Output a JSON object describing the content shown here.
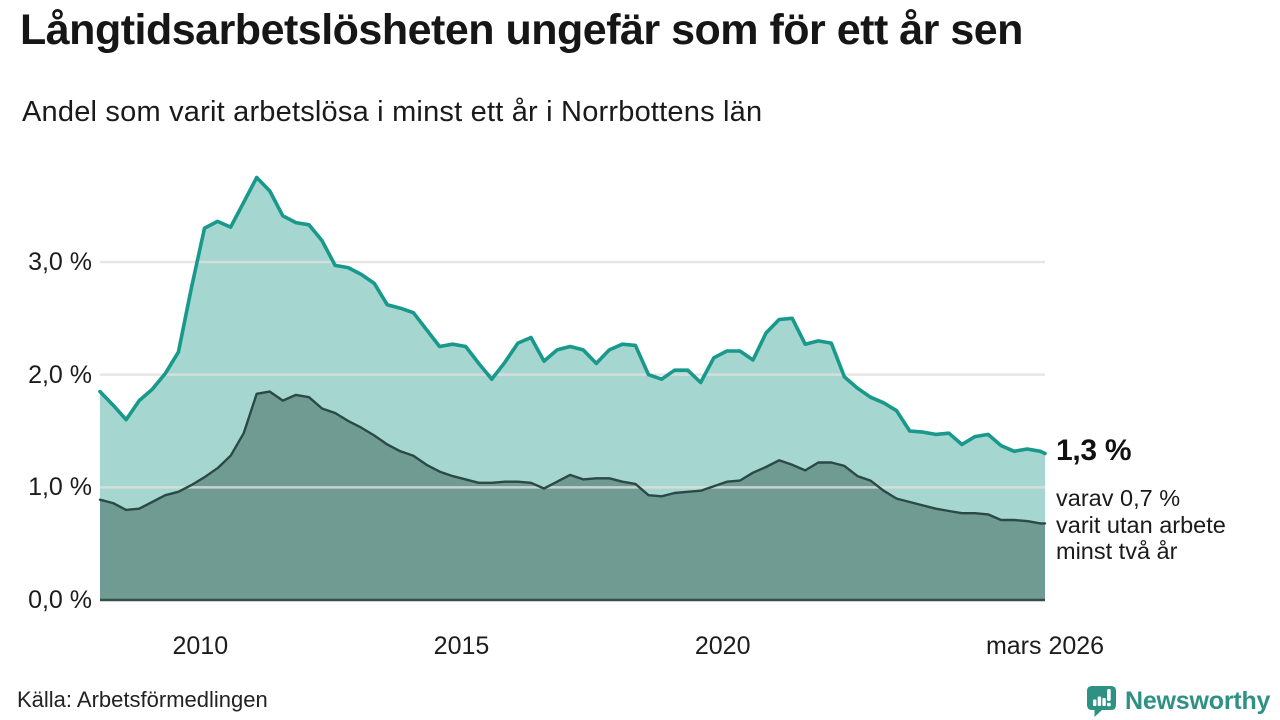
{
  "header": {
    "title": "Långtidsarbetslösheten ungefär som för ett år sen",
    "subtitle": "Andel som varit arbetslösa i minst ett år i Norrbottens län"
  },
  "annotation": {
    "value_label": "1,3 %",
    "detail_lines": [
      "varav 0,7 %",
      "varit utan arbete",
      "minst två år"
    ]
  },
  "footer": {
    "source": "Källa: Arbetsförmedlingen",
    "brand": "Newsworthy"
  },
  "colors": {
    "line_total": "#18998b",
    "fill_total": "#a5d6cf",
    "line_two_years": "#2b4a45",
    "fill_two_years": "#6f9b93",
    "gridline": "#e0e0e0",
    "baseline": "#32504a",
    "brand_teal": "#2f9184",
    "text": "#1a1a1a"
  },
  "chart_data": {
    "type": "area",
    "title": "Långtidsarbetslösheten ungefär som för ett år sen",
    "subtitle": "Andel som varit arbetslösa i minst ett år i Norrbottens län",
    "unit": "%",
    "grid": "horizontal",
    "legend_position": "none",
    "x_range": [
      2008.08,
      2026.17
    ],
    "y_range": [
      0,
      3.9
    ],
    "y_gridlines": [
      1,
      2,
      3
    ],
    "y_ticks": [
      {
        "label": "0,0 %",
        "v": 0
      },
      {
        "label": "1,0 %",
        "v": 1
      },
      {
        "label": "2,0 %",
        "v": 2
      },
      {
        "label": "3,0 %",
        "v": 3
      }
    ],
    "x_ticks": [
      {
        "label": "2010",
        "t": 2010.0
      },
      {
        "label": "2015",
        "t": 2015.0
      },
      {
        "label": "2020",
        "t": 2020.0
      },
      {
        "label": "mars 2026",
        "t": 2026.17
      }
    ],
    "x": [
      2008.08,
      2008.33,
      2008.58,
      2008.83,
      2009.08,
      2009.33,
      2009.58,
      2009.83,
      2010.08,
      2010.33,
      2010.58,
      2010.83,
      2011.08,
      2011.33,
      2011.58,
      2011.83,
      2012.08,
      2012.33,
      2012.58,
      2012.83,
      2013.08,
      2013.33,
      2013.58,
      2013.83,
      2014.08,
      2014.33,
      2014.58,
      2014.83,
      2015.08,
      2015.33,
      2015.58,
      2015.83,
      2016.08,
      2016.33,
      2016.58,
      2016.83,
      2017.08,
      2017.33,
      2017.58,
      2017.83,
      2018.08,
      2018.33,
      2018.58,
      2018.83,
      2019.08,
      2019.33,
      2019.58,
      2019.83,
      2020.08,
      2020.33,
      2020.58,
      2020.83,
      2021.08,
      2021.33,
      2021.58,
      2021.83,
      2022.08,
      2022.33,
      2022.58,
      2022.83,
      2023.08,
      2023.33,
      2023.58,
      2023.83,
      2024.08,
      2024.33,
      2024.58,
      2024.83,
      2025.08,
      2025.33,
      2025.58,
      2025.83,
      2026.08,
      2026.17
    ],
    "series": [
      {
        "name": "Arbetslösa minst ett år",
        "end_value_label": "1,3 %",
        "values": [
          1.85,
          1.73,
          1.6,
          1.77,
          1.87,
          2.01,
          2.2,
          2.77,
          3.3,
          3.36,
          3.31,
          3.53,
          3.75,
          3.63,
          3.41,
          3.35,
          3.33,
          3.19,
          2.97,
          2.95,
          2.89,
          2.81,
          2.62,
          2.59,
          2.55,
          2.4,
          2.25,
          2.27,
          2.25,
          2.1,
          1.96,
          2.11,
          2.28,
          2.33,
          2.12,
          2.22,
          2.25,
          2.22,
          2.1,
          2.22,
          2.27,
          2.26,
          2.0,
          1.96,
          2.04,
          2.04,
          1.93,
          2.15,
          2.21,
          2.21,
          2.13,
          2.37,
          2.49,
          2.5,
          2.27,
          2.3,
          2.28,
          1.98,
          1.88,
          1.8,
          1.75,
          1.68,
          1.5,
          1.49,
          1.47,
          1.48,
          1.38,
          1.45,
          1.47,
          1.37,
          1.32,
          1.34,
          1.32,
          1.3
        ]
      },
      {
        "name": "varav arbetslösa minst två år",
        "end_value_label": "0,7 %",
        "values": [
          0.89,
          0.86,
          0.8,
          0.81,
          0.87,
          0.93,
          0.96,
          1.02,
          1.09,
          1.17,
          1.28,
          1.48,
          1.83,
          1.85,
          1.77,
          1.82,
          1.8,
          1.7,
          1.66,
          1.59,
          1.53,
          1.46,
          1.38,
          1.32,
          1.28,
          1.2,
          1.14,
          1.1,
          1.07,
          1.04,
          1.04,
          1.05,
          1.05,
          1.04,
          0.99,
          1.05,
          1.11,
          1.07,
          1.08,
          1.08,
          1.05,
          1.03,
          0.93,
          0.92,
          0.95,
          0.96,
          0.97,
          1.01,
          1.05,
          1.06,
          1.13,
          1.18,
          1.24,
          1.2,
          1.15,
          1.22,
          1.22,
          1.19,
          1.1,
          1.06,
          0.97,
          0.9,
          0.87,
          0.84,
          0.81,
          0.79,
          0.77,
          0.77,
          0.76,
          0.71,
          0.71,
          0.7,
          0.68,
          0.68
        ]
      }
    ]
  }
}
